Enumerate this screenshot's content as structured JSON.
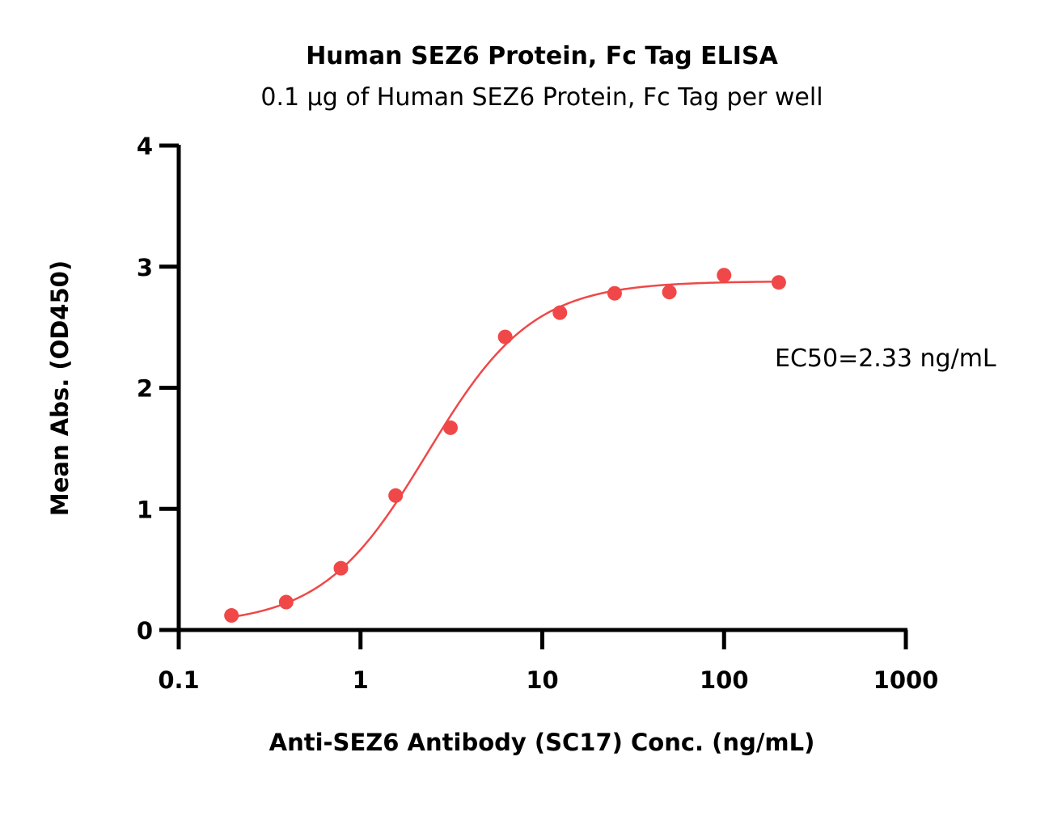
{
  "chart_data": {
    "type": "scatter",
    "title": "Human SEZ6 Protein, Fc Tag ELISA",
    "subtitle": "0.1 µg of Human SEZ6 Protein, Fc Tag per well",
    "xlabel": "Anti-SEZ6 Antibody (SC17) Conc. (ng/mL)",
    "ylabel": "Mean Abs. (OD450)",
    "x_scale": "log",
    "xlim": [
      0.1,
      1000
    ],
    "ylim": [
      0,
      4
    ],
    "x_ticks": [
      0.1,
      1,
      10,
      100,
      1000
    ],
    "x_tick_labels": [
      "0.1",
      "1",
      "10",
      "100",
      "1000"
    ],
    "y_ticks": [
      0,
      1,
      2,
      3,
      4
    ],
    "y_tick_labels": [
      "0",
      "1",
      "2",
      "3",
      "4"
    ],
    "grid": false,
    "color": "#f04848",
    "series": [
      {
        "x": [
          0.195,
          0.39,
          0.78,
          1.56,
          3.125,
          6.25,
          12.5,
          25,
          50,
          100,
          200
        ],
        "y": [
          0.12,
          0.23,
          0.51,
          1.11,
          1.67,
          2.42,
          2.62,
          2.78,
          2.79,
          2.93,
          2.87
        ]
      }
    ],
    "fit": {
      "model": "4PL",
      "bottom": 0.04,
      "top": 2.88,
      "ec50": 2.33,
      "hill": 1.5
    },
    "annotations": [
      "EC50=2.33 ng/mL"
    ]
  }
}
